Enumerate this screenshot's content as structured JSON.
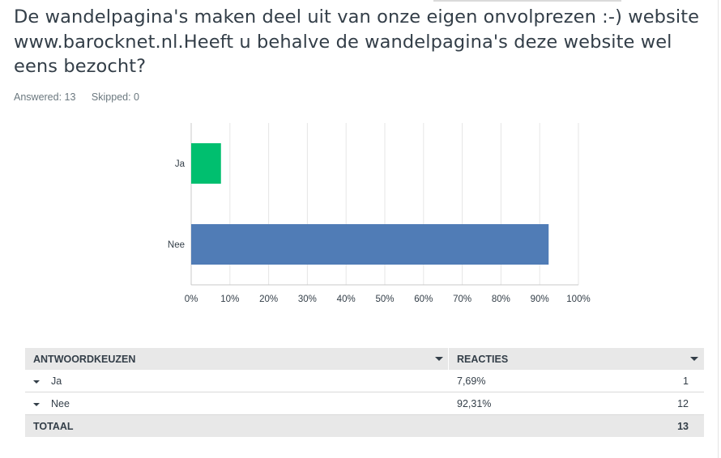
{
  "question": {
    "title": "De wandelpagina's maken deel uit van onze eigen onvolprezen :-) website www.barocknet.nl.Heeft u behalve de wandelpagina's deze website wel eens bezocht?",
    "answered": "Answered: 13",
    "skipped": "Skipped: 0"
  },
  "chart_data": {
    "type": "bar",
    "orientation": "horizontal",
    "categories": [
      "Ja",
      "Nee"
    ],
    "values": [
      7.69,
      92.31
    ],
    "bar_colors": [
      "#00bf6f",
      "#507cb6"
    ],
    "xlim": [
      0,
      100
    ],
    "x_ticks": [
      "0%",
      "10%",
      "20%",
      "30%",
      "40%",
      "50%",
      "60%",
      "70%",
      "80%",
      "90%",
      "100%"
    ],
    "grid": true
  },
  "table": {
    "header": {
      "choice": "ANTWOORDKEUZEN",
      "responses": "REACTIES"
    },
    "rows": [
      {
        "choice": "Ja",
        "percent": "7,69%",
        "count": "1"
      },
      {
        "choice": "Nee",
        "percent": "92,31%",
        "count": "12"
      }
    ],
    "total": {
      "label": "TOTAAL",
      "count": "13"
    }
  }
}
